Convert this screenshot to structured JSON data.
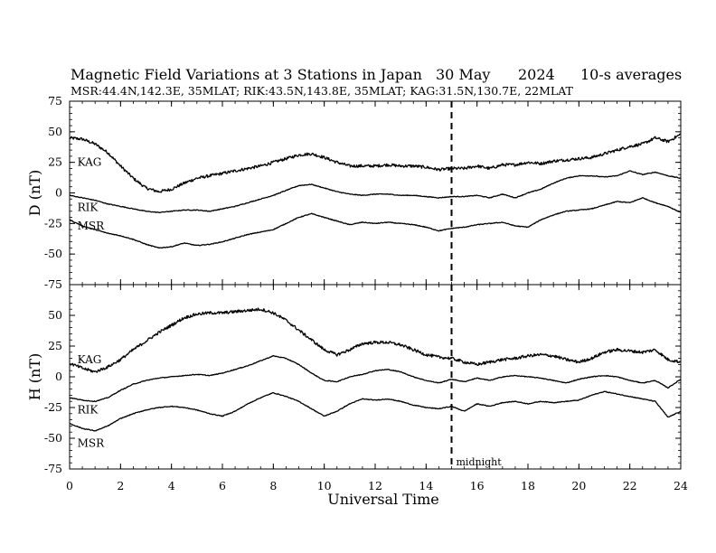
{
  "title": "Magnetic Field Variations at 3 Stations in Japan",
  "date": "30 May",
  "year": "2024",
  "averaging": "10-s averages",
  "subtitle": "MSR:44.4N,142.3E, 35MLAT;  RIK:43.5N,143.8E, 35MLAT;  KAG:31.5N,130.7E, 22MLAT",
  "midnight_label": "midnight",
  "colors": {
    "line": "#000000",
    "background": "#ffffff"
  },
  "chart_data": [
    {
      "type": "line",
      "ylabel": "D (nT)",
      "xlabel": "",
      "xlim": [
        0,
        24
      ],
      "ylim": [
        -75,
        75
      ],
      "xticks": [
        0,
        2,
        4,
        6,
        8,
        10,
        12,
        14,
        16,
        18,
        20,
        22,
        24
      ],
      "yticks": [
        -75,
        -50,
        -25,
        0,
        25,
        50,
        75
      ],
      "vline": 15,
      "series": [
        {
          "name": "KAG",
          "label_at": [
            0.2,
            25
          ],
          "x": [
            0,
            0.5,
            1,
            1.5,
            2,
            2.5,
            3,
            3.5,
            4,
            4.5,
            5,
            5.5,
            6,
            6.5,
            7,
            7.5,
            8,
            8.5,
            9,
            9.5,
            10,
            10.5,
            11,
            11.5,
            12,
            12.5,
            13,
            13.5,
            14,
            14.5,
            15,
            15.5,
            16,
            16.5,
            17,
            17.5,
            18,
            18.5,
            19,
            19.5,
            20,
            20.5,
            21,
            21.5,
            22,
            22.5,
            23,
            23.5,
            24
          ],
          "y": [
            45,
            44,
            40,
            33,
            22,
            12,
            4,
            1,
            3,
            8,
            12,
            14,
            16,
            18,
            20,
            22,
            25,
            28,
            31,
            32,
            29,
            25,
            22,
            22,
            22,
            23,
            22,
            22,
            21,
            19,
            20,
            20,
            22,
            20,
            23,
            23,
            25,
            24,
            26,
            27,
            28,
            29,
            32,
            35,
            38,
            40,
            45,
            42,
            48
          ]
        },
        {
          "name": "RIK",
          "label_at": [
            0.2,
            -12
          ],
          "x": [
            0,
            0.5,
            1,
            1.5,
            2,
            2.5,
            3,
            3.5,
            4,
            4.5,
            5,
            5.5,
            6,
            6.5,
            7,
            7.5,
            8,
            8.5,
            9,
            9.5,
            10,
            10.5,
            11,
            11.5,
            12,
            12.5,
            13,
            13.5,
            14,
            14.5,
            15,
            15.5,
            16,
            16.5,
            17,
            17.5,
            18,
            18.5,
            19,
            19.5,
            20,
            20.5,
            21,
            21.5,
            22,
            22.5,
            23,
            23.5,
            24
          ],
          "y": [
            -2,
            -4,
            -6,
            -9,
            -11,
            -13,
            -15,
            -16,
            -15,
            -14,
            -14,
            -15,
            -13,
            -11,
            -8,
            -5,
            -2,
            2,
            6,
            7,
            4,
            1,
            -1,
            -2,
            -1,
            -1,
            -2,
            -2,
            -3,
            -4,
            -3,
            -3,
            -2,
            -4,
            -1,
            -4,
            0,
            3,
            8,
            12,
            14,
            14,
            13,
            14,
            18,
            15,
            17,
            14,
            12
          ]
        },
        {
          "name": "MSR",
          "label_at": [
            0.2,
            -27
          ],
          "x": [
            0,
            0.5,
            1,
            1.5,
            2,
            2.5,
            3,
            3.5,
            4,
            4.5,
            5,
            5.5,
            6,
            6.5,
            7,
            7.5,
            8,
            8.5,
            9,
            9.5,
            10,
            10.5,
            11,
            11.5,
            12,
            12.5,
            13,
            13.5,
            14,
            14.5,
            15,
            15.5,
            16,
            16.5,
            17,
            17.5,
            18,
            18.5,
            19,
            19.5,
            20,
            20.5,
            21,
            21.5,
            22,
            22.5,
            23,
            23.5,
            24
          ],
          "y": [
            -22,
            -27,
            -30,
            -33,
            -35,
            -38,
            -42,
            -45,
            -44,
            -41,
            -43,
            -42,
            -40,
            -37,
            -34,
            -32,
            -30,
            -25,
            -20,
            -17,
            -20,
            -23,
            -26,
            -24,
            -25,
            -24,
            -25,
            -26,
            -28,
            -31,
            -29,
            -28,
            -26,
            -25,
            -24,
            -27,
            -28,
            -22,
            -18,
            -15,
            -14,
            -13,
            -10,
            -7,
            -8,
            -4,
            -8,
            -11,
            -16
          ]
        }
      ]
    },
    {
      "type": "line",
      "ylabel": "H (nT)",
      "xlabel": "Universal Time",
      "xlim": [
        0,
        24
      ],
      "ylim": [
        -75,
        75
      ],
      "xticks": [
        0,
        2,
        4,
        6,
        8,
        10,
        12,
        14,
        16,
        18,
        20,
        22,
        24
      ],
      "yticks": [
        -75,
        -50,
        -25,
        0,
        25,
        50,
        75
      ],
      "vline": 15,
      "series": [
        {
          "name": "KAG",
          "label_at": [
            0.2,
            14
          ],
          "x": [
            0,
            0.5,
            1,
            1.5,
            2,
            2.5,
            3,
            3.5,
            4,
            4.5,
            5,
            5.5,
            6,
            6.5,
            7,
            7.5,
            8,
            8.5,
            9,
            9.5,
            10,
            10.5,
            11,
            11.5,
            12,
            12.5,
            13,
            13.5,
            14,
            14.5,
            15,
            15.5,
            16,
            16.5,
            17,
            17.5,
            18,
            18.5,
            19,
            19.5,
            20,
            20.5,
            21,
            21.5,
            22,
            22.5,
            23,
            23.5,
            24
          ],
          "y": [
            11,
            7,
            4,
            8,
            14,
            22,
            29,
            36,
            42,
            48,
            51,
            52,
            52,
            53,
            54,
            55,
            52,
            46,
            38,
            30,
            22,
            18,
            22,
            27,
            28,
            28,
            26,
            22,
            18,
            16,
            15,
            12,
            10,
            12,
            14,
            15,
            17,
            18,
            17,
            14,
            12,
            15,
            20,
            22,
            21,
            20,
            22,
            14,
            12
          ]
        },
        {
          "name": "RIK",
          "label_at": [
            0.2,
            -27
          ],
          "x": [
            0,
            0.5,
            1,
            1.5,
            2,
            2.5,
            3,
            3.5,
            4,
            4.5,
            5,
            5.5,
            6,
            6.5,
            7,
            7.5,
            8,
            8.5,
            9,
            9.5,
            10,
            10.5,
            11,
            11.5,
            12,
            12.5,
            13,
            13.5,
            14,
            14.5,
            15,
            15.5,
            16,
            16.5,
            17,
            17.5,
            18,
            18.5,
            19,
            19.5,
            20,
            20.5,
            21,
            21.5,
            22,
            22.5,
            23,
            23.5,
            24
          ],
          "y": [
            -17,
            -19,
            -20,
            -17,
            -11,
            -6,
            -3,
            -1,
            0,
            1,
            2,
            1,
            3,
            6,
            9,
            13,
            17,
            15,
            10,
            3,
            -3,
            -4,
            0,
            2,
            5,
            6,
            4,
            0,
            -3,
            -5,
            -2,
            -4,
            -1,
            -3,
            0,
            1,
            0,
            -1,
            -3,
            -5,
            -2,
            0,
            1,
            0,
            -3,
            -5,
            -3,
            -9,
            -2
          ]
        },
        {
          "name": "MSR",
          "label_at": [
            0.2,
            -54
          ],
          "x": [
            0,
            0.5,
            1,
            1.5,
            2,
            2.5,
            3,
            3.5,
            4,
            4.5,
            5,
            5.5,
            6,
            6.5,
            7,
            7.5,
            8,
            8.5,
            9,
            9.5,
            10,
            10.5,
            11,
            11.5,
            12,
            12.5,
            13,
            13.5,
            14,
            14.5,
            15,
            15.5,
            16,
            16.5,
            17,
            17.5,
            18,
            18.5,
            19,
            19.5,
            20,
            20.5,
            21,
            21.5,
            22,
            22.5,
            23,
            23.5,
            24
          ],
          "y": [
            -38,
            -42,
            -44,
            -40,
            -34,
            -30,
            -27,
            -25,
            -24,
            -25,
            -27,
            -30,
            -32,
            -28,
            -22,
            -17,
            -13,
            -16,
            -20,
            -26,
            -32,
            -28,
            -22,
            -18,
            -19,
            -18,
            -20,
            -23,
            -25,
            -26,
            -24,
            -28,
            -22,
            -24,
            -21,
            -20,
            -22,
            -20,
            -21,
            -20,
            -19,
            -15,
            -12,
            -14,
            -16,
            -18,
            -20,
            -33,
            -28
          ]
        }
      ]
    }
  ]
}
